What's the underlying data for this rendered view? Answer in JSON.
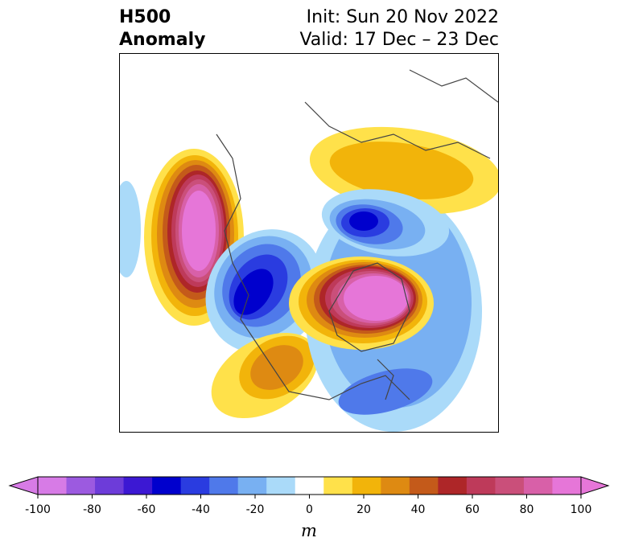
{
  "title": {
    "left_line1": "H500",
    "left_line2": "Anomaly",
    "right_line1": "Init: Sun 20 Nov 2022",
    "right_line2": "Valid: 17 Dec – 23 Dec"
  },
  "colorbar": {
    "unit": "m",
    "ticks": [
      "-100",
      "-80",
      "-60",
      "-40",
      "-20",
      "0",
      "20",
      "40",
      "60",
      "80",
      "100"
    ],
    "colors": [
      "#d77be6",
      "#9c5ae0",
      "#6d3cd9",
      "#3c18d3",
      "#0000cd",
      "#2a3ce0",
      "#4f79ea",
      "#78b0f2",
      "#aadaf9",
      "#ffffff",
      "#ffe14a",
      "#f2b40a",
      "#de8a12",
      "#c45a1a",
      "#ae2628",
      "#be3a5a",
      "#ca4f7a",
      "#d860a8",
      "#e676d8"
    ],
    "extend": "both"
  },
  "map": {
    "projection": "polar-stereographic",
    "field": "H500 anomaly"
  }
}
